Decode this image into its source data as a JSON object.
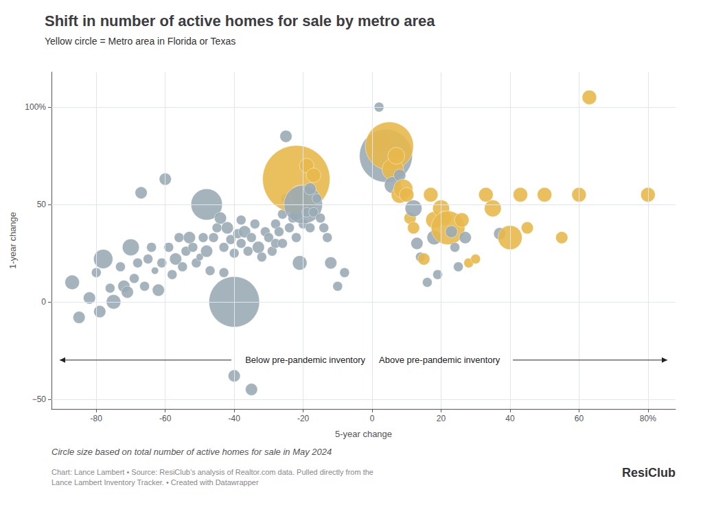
{
  "chart_data": {
    "type": "scatter",
    "title": "Shift in number of active homes for sale by metro area",
    "subtitle": "Yellow circle = Metro area in Florida or Texas",
    "xlabel": "5-year change",
    "ylabel": "1-year change",
    "annotations": [
      "Below pre-pandemic inventory",
      "Above pre-pandemic inventory"
    ],
    "note": "Circle size based on total number of active homes for sale in May 2024",
    "source": "Chart: Lance Lambert • Source: ResiClub’s analysis of Realtor.com data. Pulled directly from the\nLance Lambert Inventory Tracker. • Created with Datawrapper",
    "logo": "ResiClub",
    "xlim": [
      -93,
      88
    ],
    "ylim": [
      -55,
      118
    ],
    "xticks": [
      -80,
      -60,
      -40,
      -20,
      0,
      20,
      40,
      60,
      {
        "value": 80,
        "label": "80%"
      }
    ],
    "yticks": [
      {
        "value": -50,
        "label": "−50"
      },
      0,
      50,
      {
        "value": 100,
        "label": "100%"
      }
    ],
    "grid": true,
    "x": [
      -87,
      -85,
      -82,
      -80,
      -79,
      -78,
      -76,
      -75,
      -73,
      -72,
      -71,
      -70,
      -69,
      -68,
      -67,
      -66,
      -65,
      -64,
      -63,
      -62,
      -61,
      -60,
      -59,
      -58,
      -57,
      -56,
      -55,
      -54,
      -53,
      -52,
      -51,
      -50,
      -49,
      -48,
      -48,
      -47,
      -46,
      -45,
      -44,
      -43,
      -43,
      -42,
      -41,
      -40,
      -40,
      -39,
      -38,
      -38,
      -37,
      -36,
      -35,
      -34,
      -33,
      -32,
      -31,
      -30,
      -29,
      -28,
      -28,
      -27,
      -26,
      -26,
      -25,
      -25,
      -24,
      -23,
      -22,
      -22,
      -22,
      -21,
      -21,
      -20,
      -20,
      -19,
      -19,
      -18,
      -18,
      -17,
      -17,
      -16,
      -15,
      -14,
      -13,
      -12,
      -10,
      -8,
      -40,
      -35,
      2,
      3,
      4,
      5,
      6,
      6,
      7,
      8,
      8,
      9,
      10,
      11,
      12,
      12,
      13,
      14,
      15,
      16,
      17,
      18,
      18,
      19,
      20,
      21,
      22,
      23,
      24,
      25,
      26,
      27,
      28,
      30,
      33,
      35,
      37,
      40,
      43,
      45,
      50,
      55,
      60,
      63,
      80
    ],
    "values": [
      10,
      -8,
      2,
      15,
      -5,
      22,
      7,
      0,
      18,
      8,
      5,
      28,
      12,
      20,
      56,
      8,
      22,
      28,
      16,
      6,
      20,
      63,
      28,
      14,
      22,
      33,
      18,
      26,
      33,
      28,
      20,
      23,
      33,
      26,
      50,
      16,
      33,
      38,
      43,
      28,
      15,
      38,
      32,
      25,
      0,
      35,
      30,
      42,
      36,
      26,
      33,
      40,
      28,
      23,
      36,
      33,
      26,
      40,
      30,
      36,
      30,
      45,
      53,
      85,
      38,
      43,
      33,
      45,
      63,
      55,
      20,
      40,
      50,
      70,
      46,
      58,
      38,
      65,
      46,
      53,
      43,
      38,
      33,
      20,
      8,
      15,
      -38,
      -45,
      100,
      82,
      75,
      80,
      68,
      60,
      75,
      55,
      65,
      58,
      55,
      43,
      48,
      38,
      30,
      23,
      22,
      10,
      55,
      42,
      33,
      14,
      48,
      43,
      38,
      36,
      28,
      18,
      42,
      33,
      20,
      22,
      55,
      48,
      35,
      33,
      55,
      38,
      55,
      33,
      55,
      105,
      55
    ],
    "sizes": [
      6,
      5,
      5,
      4,
      5,
      8,
      4,
      6,
      4,
      5,
      5,
      7,
      4,
      4,
      5,
      4,
      4,
      4,
      3,
      5,
      4,
      5,
      4,
      4,
      5,
      4,
      4,
      4,
      5,
      4,
      4,
      3,
      4,
      5,
      13,
      4,
      4,
      4,
      5,
      4,
      4,
      5,
      4,
      4,
      21,
      4,
      4,
      4,
      5,
      4,
      4,
      4,
      5,
      4,
      4,
      4,
      4,
      4,
      4,
      4,
      4,
      4,
      4,
      5,
      4,
      4,
      4,
      5,
      28,
      8,
      6,
      4,
      16,
      6,
      4,
      5,
      4,
      6,
      4,
      4,
      4,
      4,
      4,
      5,
      4,
      4,
      5,
      5,
      4,
      8,
      22,
      20,
      9,
      7,
      7,
      7,
      5,
      8,
      6,
      5,
      7,
      5,
      5,
      4,
      5,
      4,
      6,
      7,
      6,
      4,
      7,
      6,
      14,
      5,
      4,
      4,
      6,
      5,
      4,
      4,
      6,
      7,
      5,
      10,
      6,
      5,
      6,
      5,
      6,
      6,
      6
    ],
    "colors": [
      "#9aabb5",
      "#9aabb5",
      "#9aabb5",
      "#9aabb5",
      "#9aabb5",
      "#9aabb5",
      "#9aabb5",
      "#9aabb5",
      "#9aabb5",
      "#9aabb5",
      "#9aabb5",
      "#9aabb5",
      "#9aabb5",
      "#9aabb5",
      "#9aabb5",
      "#9aabb5",
      "#9aabb5",
      "#9aabb5",
      "#9aabb5",
      "#9aabb5",
      "#9aabb5",
      "#9aabb5",
      "#9aabb5",
      "#9aabb5",
      "#9aabb5",
      "#9aabb5",
      "#9aabb5",
      "#9aabb5",
      "#9aabb5",
      "#9aabb5",
      "#9aabb5",
      "#9aabb5",
      "#9aabb5",
      "#9aabb5",
      "#9aabb5",
      "#9aabb5",
      "#9aabb5",
      "#9aabb5",
      "#9aabb5",
      "#9aabb5",
      "#9aabb5",
      "#9aabb5",
      "#9aabb5",
      "#9aabb5",
      "#9aabb5",
      "#9aabb5",
      "#9aabb5",
      "#9aabb5",
      "#9aabb5",
      "#9aabb5",
      "#9aabb5",
      "#9aabb5",
      "#9aabb5",
      "#9aabb5",
      "#9aabb5",
      "#9aabb5",
      "#9aabb5",
      "#9aabb5",
      "#9aabb5",
      "#9aabb5",
      "#9aabb5",
      "#9aabb5",
      "#9aabb5",
      "#9aabb5",
      "#9aabb5",
      "#9aabb5",
      "#9aabb5",
      "#9aabb5",
      "#e8b84b",
      "#e8b84b",
      "#9aabb5",
      "#9aabb5",
      "#9aabb5",
      "#e8b84b",
      "#9aabb5",
      "#9aabb5",
      "#9aabb5",
      "#e8b84b",
      "#9aabb5",
      "#9aabb5",
      "#9aabb5",
      "#9aabb5",
      "#9aabb5",
      "#9aabb5",
      "#9aabb5",
      "#9aabb5",
      "#9aabb5",
      "#9aabb5",
      "#9aabb5",
      "#e8b84b",
      "#9aabb5",
      "#e8b84b",
      "#e8b84b",
      "#9aabb5",
      "#e8b84b",
      "#e8b84b",
      "#9aabb5",
      "#e8b84b",
      "#e8b84b",
      "#e8b84b",
      "#9aabb5",
      "#e8b84b",
      "#9aabb5",
      "#9aabb5",
      "#e8b84b",
      "#9aabb5",
      "#e8b84b",
      "#e8b84b",
      "#9aabb5",
      "#9aabb5",
      "#e8b84b",
      "#e8b84b",
      "#e8b84b",
      "#9aabb5",
      "#9aabb5",
      "#9aabb5",
      "#e8b84b",
      "#9aabb5",
      "#e8b84b",
      "#e8b84b",
      "#e8b84b",
      "#e8b84b",
      "#9aabb5",
      "#e8b84b",
      "#e8b84b",
      "#e8b84b",
      "#e8b84b",
      "#e8b84b",
      "#e8b84b",
      "#e8b84b",
      "#e8b84b"
    ]
  }
}
